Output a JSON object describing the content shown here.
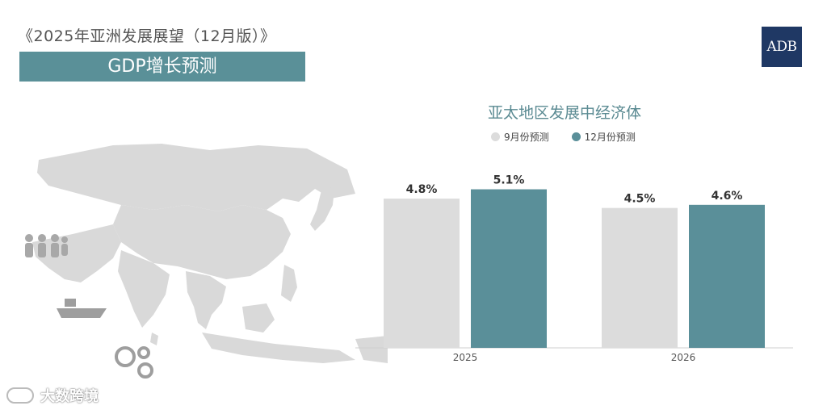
{
  "header": {
    "report_title": "《2025年亚洲发展展望（12月版）》",
    "banner_label": "GDP增长预测",
    "logo_text": "ADB"
  },
  "colors": {
    "accent": "#5a9098",
    "september": "#dcdcdc",
    "december": "#5a8f99",
    "logo_bg": "#1f3864"
  },
  "icons": [
    "world-map",
    "people-group-icon",
    "cargo-ship-icon",
    "finance-gears-icon"
  ],
  "watermark": {
    "text": "大数跨境"
  },
  "chart_data": {
    "type": "bar",
    "title": "亚太地区发展中经济体",
    "categories": [
      "2025",
      "2026"
    ],
    "series": [
      {
        "name": "9月份预测",
        "values": [
          4.8,
          4.5
        ],
        "labels": [
          "4.8%",
          "4.5%"
        ],
        "color": "#dcdcdc"
      },
      {
        "name": "12月份预测",
        "values": [
          5.1,
          4.6
        ],
        "labels": [
          "5.1%",
          "4.6%"
        ],
        "color": "#5a8f99"
      }
    ],
    "ylim": [
      0,
      5.4
    ],
    "grid": false,
    "legend": "top-left"
  }
}
